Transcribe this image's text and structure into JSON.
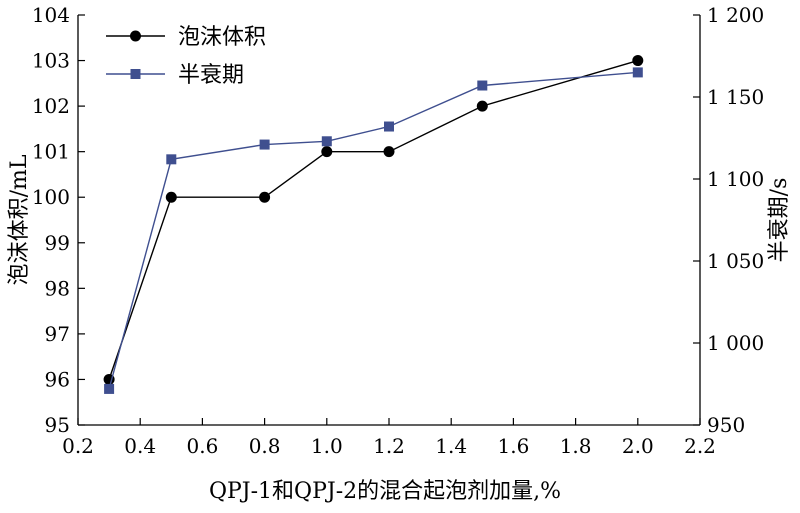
{
  "chart_data": {
    "type": "line",
    "x_label": "QPJ-1和QPJ-2的混合起泡剂加量,%",
    "y_left_label": "泡沫体积/mL",
    "y_right_label": "半衰期/s",
    "x_ticks": [
      "0.2",
      "0.4",
      "0.6",
      "0.8",
      "1.0",
      "1.2",
      "1.4",
      "1.6",
      "1.8",
      "2.0",
      "2.2"
    ],
    "x_range": [
      0.2,
      2.2
    ],
    "y_left_ticks": [
      "95",
      "96",
      "97",
      "98",
      "99",
      "100",
      "101",
      "102",
      "103",
      "104"
    ],
    "y_left_range": [
      95,
      104
    ],
    "y_right_ticks": [
      "950",
      "1 000",
      "1 050",
      "1 100",
      "1 150",
      "1 200"
    ],
    "y_right_range": [
      950,
      1200
    ],
    "legend_position": "top-left",
    "series": [
      {
        "name": "泡沫体积",
        "axis": "left",
        "marker": "circle",
        "color": "#000000",
        "x": [
          0.3,
          0.5,
          0.8,
          1.0,
          1.2,
          1.5,
          2.0
        ],
        "y": [
          96,
          100,
          100,
          101,
          101,
          102,
          103
        ]
      },
      {
        "name": "半衰期",
        "axis": "right",
        "marker": "square",
        "color": "#3f4f8f",
        "x": [
          0.3,
          0.5,
          0.8,
          1.0,
          1.2,
          1.5,
          2.0
        ],
        "y": [
          972,
          1112,
          1121,
          1123,
          1132,
          1157,
          1165
        ]
      }
    ]
  }
}
